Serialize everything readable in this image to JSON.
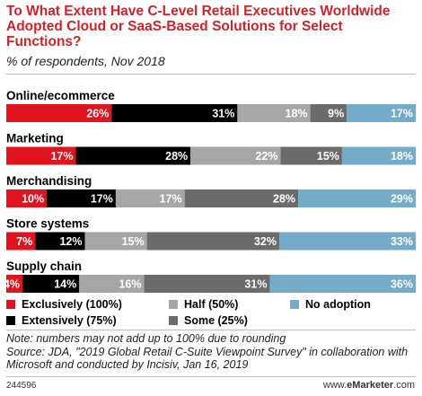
{
  "header": {
    "title": "To What Extent Have C-Level Retail Executives Worldwide Adopted Cloud or SaaS-Based Solutions for Select Functions?",
    "subtitle": "% of respondents, Nov 2018"
  },
  "colors": {
    "exclusively": "#e0141e",
    "extensively": "#000000",
    "half": "#a6a6a6",
    "some": "#6b6b6b",
    "no_adoption": "#74abc8"
  },
  "chart_data": {
    "type": "bar",
    "orientation": "horizontal",
    "stacked": true,
    "categories": [
      "Online/ecommerce",
      "Marketing",
      "Merchandising",
      "Store systems",
      "Supply chain"
    ],
    "series": [
      {
        "name": "Exclusively (100%)",
        "color": "#e0141e",
        "values": [
          26,
          17,
          10,
          7,
          4
        ]
      },
      {
        "name": "Extensively (75%)",
        "color": "#000000",
        "values": [
          31,
          28,
          17,
          12,
          14
        ]
      },
      {
        "name": "Half (50%)",
        "color": "#a6a6a6",
        "values": [
          18,
          22,
          17,
          15,
          16
        ]
      },
      {
        "name": "Some (25%)",
        "color": "#6b6b6b",
        "values": [
          9,
          15,
          28,
          32,
          31
        ]
      },
      {
        "name": "No adoption",
        "color": "#74abc8",
        "values": [
          17,
          18,
          29,
          33,
          36
        ]
      }
    ],
    "value_suffix": "%",
    "legend_position": "bottom"
  },
  "legend": {
    "exclusively": "Exclusively (100%)",
    "extensively": "Extensively (75%)",
    "half": "Half (50%)",
    "some": "Some (25%)",
    "no_adoption": "No adoption"
  },
  "footer": {
    "note_line1": "Note: numbers may not add up to 100% due to rounding",
    "note_line2": "Source: JDA, \"2019 Global Retail C-Suite Viewpoint Survey\" in collaboration with Microsoft and conducted by Incisiv, Jan 16, 2019",
    "chart_id": "244596",
    "brand_prefix": "www.",
    "brand_name": "eMarketer",
    "brand_suffix": ".com"
  }
}
